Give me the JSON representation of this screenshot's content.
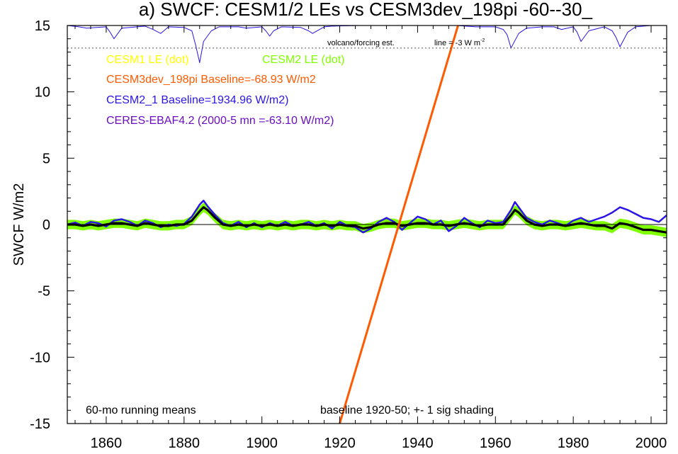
{
  "chart_data": {
    "type": "line",
    "title": "a) SWCF: CESM1/2 LEs vs CESM3dev_198pi -60--30_",
    "ylabel": "SWCF W/m2",
    "xlabel": "",
    "xlim": [
      1850,
      2004
    ],
    "ylim": [
      -15,
      15
    ],
    "x_ticks": [
      1860,
      1880,
      1900,
      1920,
      1940,
      1960,
      1980,
      2000
    ],
    "y_ticks": [
      -15,
      -10,
      -5,
      0,
      5,
      10,
      15
    ],
    "grid": false,
    "legend_entries": [
      {
        "text": "CESM1 LE (dot)",
        "color": "#ffff00"
      },
      {
        "text": "CESM2 LE (dot)",
        "color": "#80ff00"
      },
      {
        "text": "CESM3dev_198pi Baseline=-68.93 W/m2",
        "color": "#ff5a00"
      },
      {
        "text": "CESM2_1 Baseline=1934.96 W/m2)",
        "color": "#2a14e6"
      },
      {
        "text": "CERES-EBAF4.2 (2000-5 mn =-63.10 W/m2)",
        "color": "#6a0fc0"
      }
    ],
    "annotations": {
      "volcano": "volcano/forcing est.",
      "line_prefix": "line = -3 W m",
      "line_sup": "-2",
      "running_means": "60-mo running means",
      "baseline_note": "baseline 1920-50; +- 1 sig shading"
    },
    "volcano_reference_y": 13.3,
    "series": [
      {
        "name": "CESM3dev_198pi",
        "color": "#ff5a00",
        "x": [
          1920.0,
          1950.4
        ],
        "y": [
          -15.0,
          15.0
        ]
      },
      {
        "name": "volcano/forcing est.",
        "color": "#2a14e6",
        "x": [
          1850,
          1853,
          1855,
          1860,
          1861,
          1862,
          1864,
          1870,
          1872,
          1874,
          1876,
          1880,
          1882,
          1883,
          1884,
          1885,
          1887,
          1889,
          1894,
          1896,
          1900,
          1901,
          1902,
          1903,
          1905,
          1910,
          1912,
          1913,
          1916,
          1918,
          1925,
          1930,
          1940,
          1950,
          1955,
          1960,
          1962,
          1963,
          1964,
          1966,
          1968,
          1972,
          1975,
          1977,
          1980,
          1981,
          1982,
          1984,
          1988,
          1990,
          1991,
          1992,
          1994,
          1996,
          2000,
          2004
        ],
        "y": [
          15.0,
          14.9,
          14.8,
          14.9,
          14.5,
          14.0,
          14.8,
          14.95,
          14.7,
          14.4,
          14.9,
          14.85,
          14.6,
          13.5,
          12.2,
          13.8,
          14.6,
          14.9,
          14.9,
          14.8,
          14.9,
          14.6,
          14.2,
          14.6,
          14.9,
          14.85,
          14.6,
          14.4,
          14.9,
          14.95,
          15.0,
          15.0,
          15.0,
          15.0,
          14.9,
          14.9,
          14.7,
          14.3,
          13.3,
          14.4,
          14.8,
          14.9,
          14.9,
          14.7,
          14.9,
          14.5,
          13.8,
          14.6,
          14.9,
          14.6,
          14.1,
          13.4,
          14.5,
          14.9,
          15.0,
          15.0
        ]
      },
      {
        "name": "CESM2_1",
        "color": "#2a14e6",
        "x": [
          1850,
          1852,
          1854,
          1856,
          1858,
          1860,
          1862,
          1864,
          1866,
          1868,
          1870,
          1872,
          1874,
          1876,
          1878,
          1880,
          1882,
          1884,
          1885,
          1886,
          1888,
          1890,
          1892,
          1894,
          1896,
          1898,
          1900,
          1902,
          1904,
          1906,
          1908,
          1910,
          1912,
          1914,
          1916,
          1918,
          1920,
          1922,
          1924,
          1926,
          1928,
          1930,
          1932,
          1934,
          1936,
          1938,
          1940,
          1942,
          1944,
          1946,
          1948,
          1950,
          1952,
          1954,
          1956,
          1958,
          1960,
          1962,
          1964,
          1965,
          1966,
          1968,
          1970,
          1972,
          1974,
          1976,
          1978,
          1980,
          1982,
          1984,
          1986,
          1988,
          1990,
          1992,
          1994,
          1996,
          1998,
          2000,
          2002,
          2004
        ],
        "y": [
          0.0,
          0.15,
          -0.1,
          0.2,
          0.1,
          -0.15,
          0.3,
          0.4,
          0.2,
          -0.1,
          0.3,
          0.1,
          -0.2,
          0.0,
          -0.1,
          0.05,
          0.6,
          1.5,
          1.8,
          1.4,
          0.7,
          0.1,
          -0.1,
          0.2,
          -0.2,
          0.1,
          -0.2,
          0.1,
          -0.1,
          0.2,
          -0.1,
          0.0,
          0.2,
          -0.1,
          0.1,
          -0.3,
          0.2,
          -0.1,
          -0.2,
          -0.6,
          -0.3,
          0.2,
          0.5,
          0.2,
          -0.4,
          0.1,
          0.6,
          0.4,
          0.0,
          0.3,
          -0.5,
          -0.1,
          0.5,
          0.1,
          -0.2,
          0.3,
          0.1,
          0.2,
          1.1,
          1.7,
          1.3,
          0.5,
          0.2,
          0.0,
          0.3,
          0.1,
          -0.1,
          0.3,
          0.5,
          0.2,
          0.4,
          0.6,
          0.9,
          1.3,
          1.1,
          0.8,
          0.5,
          0.4,
          0.2,
          0.7
        ]
      },
      {
        "name": "CESM ensemble mean",
        "color": "#000000",
        "x": [
          1850,
          1852,
          1854,
          1856,
          1858,
          1860,
          1862,
          1864,
          1866,
          1868,
          1870,
          1872,
          1874,
          1876,
          1878,
          1880,
          1882,
          1884,
          1885,
          1886,
          1888,
          1890,
          1892,
          1894,
          1896,
          1898,
          1900,
          1902,
          1904,
          1906,
          1908,
          1910,
          1912,
          1914,
          1916,
          1918,
          1920,
          1922,
          1924,
          1926,
          1928,
          1930,
          1932,
          1934,
          1936,
          1938,
          1940,
          1942,
          1944,
          1946,
          1948,
          1950,
          1952,
          1954,
          1956,
          1958,
          1960,
          1962,
          1964,
          1965,
          1966,
          1968,
          1970,
          1972,
          1974,
          1976,
          1978,
          1980,
          1982,
          1984,
          1986,
          1988,
          1990,
          1992,
          1994,
          1996,
          1998,
          2000,
          2002,
          2004
        ],
        "y": [
          0.0,
          0.0,
          -0.1,
          0.0,
          -0.1,
          0.0,
          0.1,
          0.1,
          0.0,
          -0.1,
          0.1,
          0.0,
          -0.1,
          -0.1,
          0.0,
          0.0,
          0.3,
          1.0,
          1.3,
          1.1,
          0.5,
          0.0,
          -0.1,
          0.0,
          -0.1,
          0.0,
          -0.1,
          0.0,
          -0.1,
          0.0,
          -0.1,
          0.0,
          0.0,
          -0.1,
          0.0,
          -0.1,
          0.0,
          -0.1,
          -0.1,
          -0.3,
          -0.2,
          0.0,
          0.1,
          0.1,
          -0.1,
          0.0,
          0.1,
          0.1,
          0.0,
          0.0,
          -0.1,
          0.0,
          0.1,
          0.0,
          -0.1,
          0.0,
          0.0,
          0.0,
          0.7,
          1.1,
          0.9,
          0.3,
          0.0,
          -0.1,
          0.0,
          0.0,
          -0.1,
          0.0,
          0.1,
          0.0,
          -0.1,
          -0.1,
          -0.3,
          0.1,
          0.0,
          -0.2,
          -0.4,
          -0.4,
          -0.5,
          -0.6
        ]
      }
    ],
    "shading": {
      "color": "#7fff00",
      "half_width": 0.35
    }
  }
}
